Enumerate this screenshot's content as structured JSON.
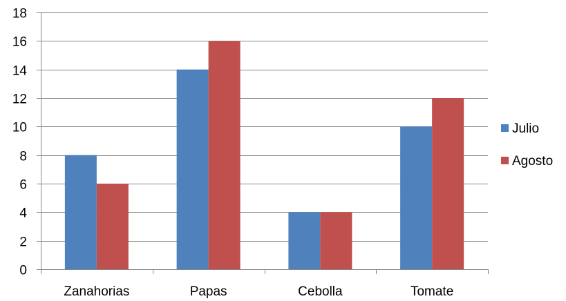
{
  "chart_data": {
    "type": "bar",
    "title": "",
    "xlabel": "",
    "ylabel": "",
    "categories": [
      "Zanahorias",
      "Papas",
      "Cebolla",
      "Tomate"
    ],
    "series": [
      {
        "name": "Julio",
        "values": [
          8,
          14,
          4,
          10
        ],
        "color": "#4F81BD"
      },
      {
        "name": "Agosto",
        "values": [
          6,
          16,
          4,
          12
        ],
        "color": "#C0504D"
      }
    ],
    "ylim": [
      0,
      18
    ],
    "yticks": [
      "0",
      "2",
      "4",
      "6",
      "8",
      "10",
      "12",
      "14",
      "16",
      "18"
    ],
    "grid": true,
    "legend_position": "right"
  }
}
